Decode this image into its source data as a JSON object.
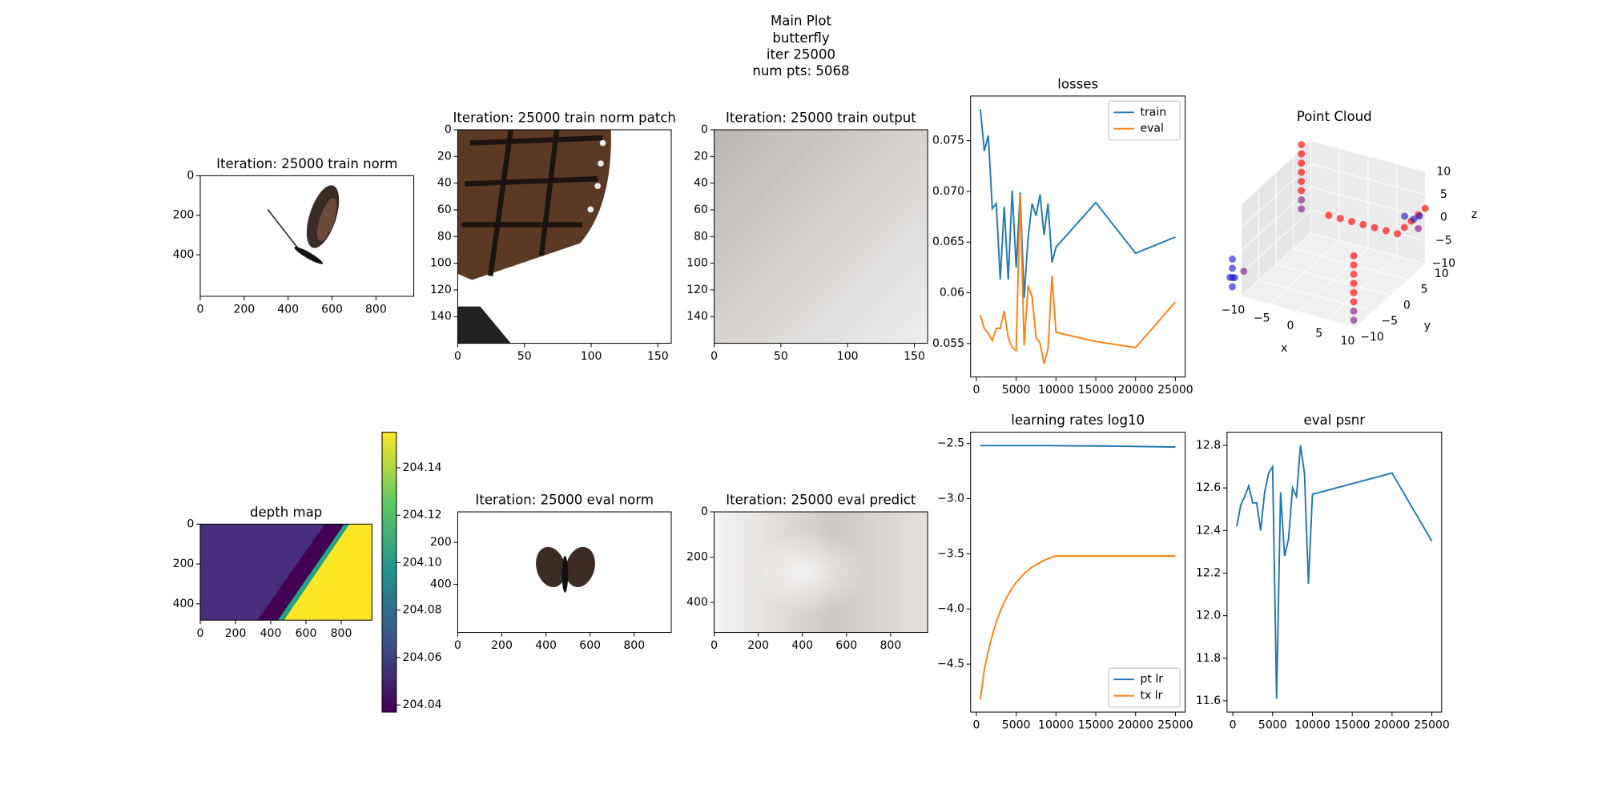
{
  "suptitle": [
    "Main Plot",
    "butterfly",
    "iter 25000",
    "num pts: 5068"
  ],
  "chart_data": [
    {
      "type": "image",
      "title": "Iteration: 25000 train norm",
      "xlim": [
        0,
        972
      ],
      "ylim": [
        610,
        0
      ],
      "xticks": [
        0,
        200,
        400,
        600,
        800
      ],
      "yticks": [
        0,
        200,
        400
      ]
    },
    {
      "type": "image",
      "title": "Iteration: 25000 train norm patch",
      "xlim": [
        0,
        160
      ],
      "ylim": [
        160,
        0
      ],
      "xticks": [
        0,
        50,
        100,
        150
      ],
      "yticks": [
        0,
        20,
        40,
        60,
        80,
        100,
        120,
        140
      ]
    },
    {
      "type": "image",
      "title": "Iteration: 25000 train output",
      "xlim": [
        0,
        160
      ],
      "ylim": [
        160,
        0
      ],
      "xticks": [
        0,
        50,
        100,
        150
      ],
      "yticks": [
        0,
        20,
        40,
        60,
        80,
        100,
        120,
        140
      ]
    },
    {
      "type": "line",
      "title": "losses",
      "legend": "upper right",
      "x": [
        500,
        1000,
        1500,
        2000,
        2500,
        3000,
        3500,
        4000,
        4500,
        5000,
        5500,
        6000,
        6500,
        7000,
        7500,
        8000,
        8500,
        9000,
        9500,
        10000,
        15000,
        20000,
        25000
      ],
      "series": [
        {
          "name": "train",
          "color": "#1f77b4",
          "values": [
            0.0781,
            0.074,
            0.0755,
            0.0683,
            0.0688,
            0.0613,
            0.0685,
            0.0613,
            0.0701,
            0.0625,
            0.0699,
            0.0595,
            0.0655,
            0.0688,
            0.0676,
            0.0697,
            0.0657,
            0.0688,
            0.063,
            0.0645,
            0.0689,
            0.0639,
            0.0655
          ]
        },
        {
          "name": "eval",
          "color": "#ff7f0e",
          "values": [
            0.0578,
            0.0565,
            0.056,
            0.0553,
            0.0565,
            0.0565,
            0.0582,
            0.0556,
            0.0546,
            0.0543,
            0.0697,
            0.0548,
            0.0607,
            0.0596,
            0.0556,
            0.055,
            0.053,
            0.0545,
            0.0617,
            0.0561,
            0.0552,
            0.0546,
            0.0591
          ]
        }
      ],
      "xlim": [
        -725,
        26225
      ],
      "ylim": [
        0.0517,
        0.0794
      ],
      "xticks": [
        0,
        5000,
        10000,
        15000,
        20000,
        25000
      ],
      "yticks": [
        0.055,
        0.06,
        {
          "value": 0.065,
          "label": "0.065"
        },
        {
          "value": 0.07,
          "label": "0.070"
        },
        0.075
      ]
    },
    {
      "type": "scatter3d",
      "title": "Point Cloud",
      "xlabel": "x",
      "ylabel": "y",
      "zlabel": "z",
      "xlim": [
        -10,
        10
      ],
      "ylim": [
        -10,
        10
      ],
      "zlim": [
        -10,
        10
      ],
      "xticks": [
        {
          "value": -10,
          "label": "−10"
        },
        {
          "value": -5,
          "label": "−5"
        },
        0,
        5,
        10
      ],
      "yticks": [
        {
          "value": -10,
          "label": "−10"
        },
        {
          "value": -5,
          "label": "−5"
        },
        0,
        5,
        10
      ],
      "zticks": [
        {
          "value": -10,
          "label": "−10"
        },
        {
          "value": -5,
          "label": "−5"
        },
        0,
        5,
        10
      ],
      "series": [
        {
          "color": "#ff0000",
          "x": [
            -8,
            -8,
            -8,
            -8,
            -8,
            -8,
            -2,
            0,
            2,
            4,
            6,
            8,
            10,
            10,
            10,
            10,
            10,
            6,
            6,
            6,
            6,
            6,
            6
          ],
          "y": [
            4,
            4,
            4,
            4,
            4,
            4,
            2,
            2,
            2,
            2,
            2,
            2,
            2,
            4,
            6,
            8,
            10,
            -4,
            -4,
            -4,
            -4,
            -4,
            -4
          ],
          "z": [
            4,
            6,
            8,
            10,
            12,
            14,
            2,
            2,
            2,
            2,
            2,
            2,
            2,
            2,
            2,
            2,
            2,
            0,
            -2,
            -4,
            -6,
            -8,
            -10
          ]
        },
        {
          "color": "#8a1a8f",
          "x": [
            -8,
            -8,
            6,
            6,
            -12,
            10
          ],
          "y": [
            4,
            4,
            -4,
            -4,
            -6,
            8
          ],
          "z": [
            2,
            0,
            -12,
            -14,
            -8,
            -1
          ]
        },
        {
          "color": "#2222cc",
          "x": [
            -14,
            -14,
            -14,
            -14,
            -13,
            -15,
            9,
            8,
            7
          ],
          "y": [
            -6,
            -6,
            -6,
            -6,
            -7,
            -5,
            10,
            10,
            9
          ],
          "z": [
            -6,
            -8,
            -10,
            -12,
            -9,
            -11,
            0,
            -1,
            0
          ]
        }
      ]
    },
    {
      "type": "heatmap",
      "title": "depth map",
      "xlim": [
        0,
        974
      ],
      "ylim": [
        482,
        0
      ],
      "xticks": [
        0,
        200,
        400,
        600,
        800
      ],
      "yticks": [
        0,
        200,
        400
      ],
      "clim": [
        204.037,
        204.155
      ],
      "cticks": [
        204.04,
        204.06,
        204.08,
        {
          "value": 204.1,
          "label": "204.10"
        },
        204.12,
        204.14
      ]
    },
    {
      "type": "image",
      "title": "Iteration: 25000 eval norm",
      "xlim": [
        0,
        968
      ],
      "ylim": [
        629,
        54
      ],
      "xticks": [
        0,
        200,
        400,
        600,
        800
      ],
      "yticks": [
        200,
        400
      ]
    },
    {
      "type": "image",
      "title": "Iteration: 25000 eval predict",
      "xlim": [
        0,
        968
      ],
      "ylim": [
        532,
        0
      ],
      "xticks": [
        0,
        200,
        400,
        600,
        800
      ],
      "yticks": [
        0,
        200,
        400
      ]
    },
    {
      "type": "line",
      "title": "learning rates log10",
      "legend": "lower right",
      "x": [
        500,
        1000,
        1500,
        2000,
        2500,
        3000,
        3500,
        4000,
        4500,
        5000,
        5500,
        6000,
        6500,
        7000,
        7500,
        8000,
        8500,
        9000,
        9500,
        10000,
        15000,
        20000,
        25000
      ],
      "series": [
        {
          "name": "pt lr",
          "color": "#1f77b4",
          "values": [
            -2.52,
            -2.52,
            -2.52,
            -2.52,
            -2.52,
            -2.52,
            -2.52,
            -2.52,
            -2.52,
            -2.52,
            -2.52,
            -2.52,
            -2.52,
            -2.52,
            -2.52,
            -2.52,
            -2.52,
            -2.52,
            -2.52,
            -2.521,
            -2.523,
            -2.527,
            -2.533
          ]
        },
        {
          "name": "tx lr",
          "color": "#ff7f0e",
          "values": [
            -4.82,
            -4.55,
            -4.38,
            -4.24,
            -4.12,
            -4.02,
            -3.94,
            -3.87,
            -3.81,
            -3.76,
            -3.72,
            -3.68,
            -3.65,
            -3.62,
            -3.6,
            -3.58,
            -3.56,
            -3.545,
            -3.53,
            -3.52,
            -3.52,
            -3.52,
            -3.52
          ]
        }
      ],
      "xlim": [
        -725,
        26225
      ],
      "ylim": [
        -4.935,
        -2.398
      ],
      "xticks": [
        0,
        5000,
        10000,
        15000,
        20000,
        25000
      ],
      "yticks": [
        {
          "value": -4.5,
          "label": "−4.5"
        },
        {
          "value": -4,
          "label": "−4.0"
        },
        {
          "value": -3.5,
          "label": "−3.5"
        },
        {
          "value": -3,
          "label": "−3.0"
        },
        {
          "value": -2.5,
          "label": "−2.5"
        }
      ]
    },
    {
      "type": "line",
      "title": "eval psnr",
      "x": [
        500,
        1000,
        1500,
        2000,
        2500,
        3000,
        3500,
        4000,
        4500,
        5000,
        5500,
        6000,
        6500,
        7000,
        7500,
        8000,
        8500,
        9000,
        9500,
        10000,
        15000,
        20000,
        25000
      ],
      "series": [
        {
          "color": "#1f77b4",
          "values": [
            12.42,
            12.52,
            12.56,
            12.61,
            12.53,
            12.53,
            12.4,
            12.58,
            12.67,
            12.7,
            11.61,
            12.58,
            12.28,
            12.36,
            12.6,
            12.56,
            12.8,
            12.67,
            12.15,
            12.57,
            12.62,
            12.67,
            12.35
          ]
        }
      ],
      "xlim": [
        -725,
        26225
      ],
      "ylim": [
        11.547,
        12.862
      ],
      "xticks": [
        0,
        5000,
        10000,
        15000,
        20000,
        25000
      ],
      "yticks": [
        11.6,
        11.8,
        {
          "value": 12,
          "label": "12.0"
        },
        12.2,
        12.4,
        12.6,
        12.8
      ]
    }
  ]
}
